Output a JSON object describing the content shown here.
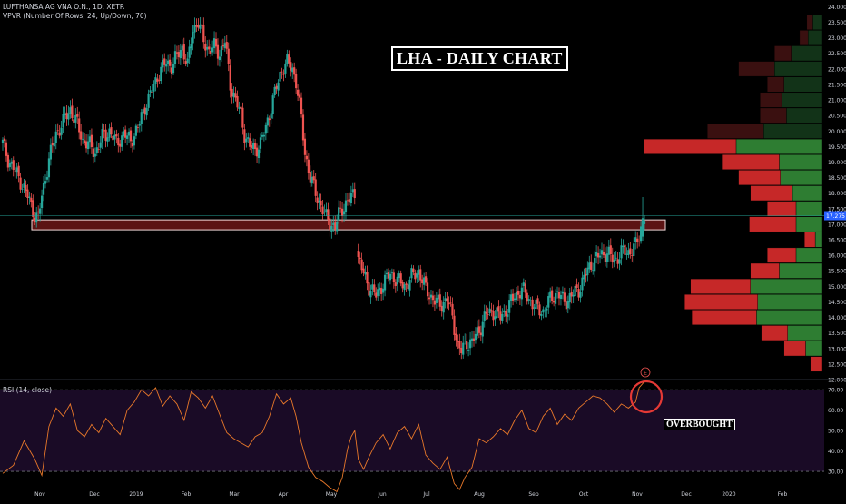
{
  "header": {
    "symbol_line": "LUFTHANSA AG VNA O.N., 1D, XETR",
    "vpvr_line": "VPVR (Number Of Rows, 24, Up/Down, 70)"
  },
  "annotations": {
    "title": "LHA - DAILY CHART",
    "overbought": "OVERBOUGHT",
    "earnings_marker": "E"
  },
  "price_label": "17.275",
  "rsi_label": "RSI (14, close)",
  "colors": {
    "up": "#26a69a",
    "down": "#ef5350",
    "zone_fill": "#5c1414",
    "rsi_line": "#e8782a",
    "rsi_band": "#1a0b26",
    "vp_up": "#2e7d32",
    "vp_down": "#c62828",
    "marker": "#ef5350"
  },
  "chart_data": [
    {
      "type": "candlestick",
      "title": "",
      "xlabel": "",
      "ylabel": "",
      "x_ticks": [
        "Nov",
        "Dec",
        "2019",
        "Feb",
        "Mar",
        "Apr",
        "May",
        "Jun",
        "Jul",
        "Aug",
        "Sep",
        "Oct",
        "Nov",
        "Dec",
        "2020",
        "Feb"
      ],
      "y_ticks": [
        "12.000",
        "12.500",
        "13.000",
        "13.500",
        "14.000",
        "14.500",
        "15.000",
        "15.500",
        "16.000",
        "16.500",
        "17.000",
        "17.500",
        "18.000",
        "18.500",
        "19.000",
        "19.500",
        "20.000",
        "20.500",
        "21.000",
        "21.500",
        "22.000",
        "22.500",
        "23.000",
        "23.500",
        "24.000"
      ],
      "ylim": [
        12.0,
        24.1
      ],
      "last_price": 17.275,
      "support_zone": [
        16.82,
        17.14
      ],
      "close_path": [
        [
          0,
          19.6
        ],
        [
          3,
          19.1
        ],
        [
          7,
          18.7
        ],
        [
          10,
          18.4
        ],
        [
          14,
          17.9
        ],
        [
          18,
          17.3
        ],
        [
          20,
          17.2
        ],
        [
          22,
          17.9
        ],
        [
          26,
          19.1
        ],
        [
          30,
          19.9
        ],
        [
          34,
          20.3
        ],
        [
          38,
          20.7
        ],
        [
          42,
          20.2
        ],
        [
          45,
          19.7
        ],
        [
          48,
          19.6
        ],
        [
          52,
          19.3
        ],
        [
          56,
          19.8
        ],
        [
          60,
          20.0
        ],
        [
          64,
          19.6
        ],
        [
          68,
          19.9
        ],
        [
          72,
          19.7
        ],
        [
          76,
          20.1
        ],
        [
          80,
          20.8
        ],
        [
          84,
          21.3
        ],
        [
          88,
          21.9
        ],
        [
          92,
          22.2
        ],
        [
          95,
          22.1
        ],
        [
          98,
          22.4
        ],
        [
          101,
          22.7
        ],
        [
          104,
          22.1
        ],
        [
          107,
          23.3
        ],
        [
          110,
          23.5
        ],
        [
          113,
          22.9
        ],
        [
          116,
          22.6
        ],
        [
          119,
          22.7
        ],
        [
          122,
          22.5
        ],
        [
          125,
          22.9
        ],
        [
          128,
          21.5
        ],
        [
          131,
          21.0
        ],
        [
          134,
          20.5
        ],
        [
          136,
          19.9
        ],
        [
          139,
          19.5
        ],
        [
          142,
          19.4
        ],
        [
          145,
          19.6
        ],
        [
          148,
          20.1
        ],
        [
          151,
          20.8
        ],
        [
          154,
          21.4
        ],
        [
          157,
          22.0
        ],
        [
          160,
          22.2
        ],
        [
          163,
          22.0
        ],
        [
          165,
          21.6
        ],
        [
          168,
          20.4
        ],
        [
          170,
          19.3
        ],
        [
          173,
          18.5
        ],
        [
          176,
          18.0
        ],
        [
          179,
          17.6
        ],
        [
          182,
          17.2
        ],
        [
          185,
          17.0
        ],
        [
          187,
          16.9
        ],
        [
          189,
          17.3
        ],
        [
          192,
          17.6
        ],
        [
          195,
          17.8
        ],
        [
          198,
          18.0
        ],
        [
          200,
          15.9
        ],
        [
          203,
          15.4
        ],
        [
          206,
          15.0
        ],
        [
          210,
          14.7
        ],
        [
          214,
          15.1
        ],
        [
          218,
          15.4
        ],
        [
          222,
          15.2
        ],
        [
          226,
          15.0
        ],
        [
          230,
          15.3
        ],
        [
          234,
          15.5
        ],
        [
          238,
          14.9
        ],
        [
          242,
          14.6
        ],
        [
          246,
          14.4
        ],
        [
          250,
          14.6
        ],
        [
          253,
          14.0
        ],
        [
          256,
          13.1
        ],
        [
          258,
          12.9
        ],
        [
          261,
          13.2
        ],
        [
          264,
          13.2
        ],
        [
          268,
          13.6
        ],
        [
          272,
          14.1
        ],
        [
          276,
          14.2
        ],
        [
          280,
          14.0
        ],
        [
          284,
          14.3
        ],
        [
          288,
          14.7
        ],
        [
          292,
          14.9
        ],
        [
          296,
          14.6
        ],
        [
          300,
          14.3
        ],
        [
          304,
          14.2
        ],
        [
          308,
          14.6
        ],
        [
          312,
          14.8
        ],
        [
          316,
          14.5
        ],
        [
          320,
          14.7
        ],
        [
          324,
          14.9
        ],
        [
          328,
          15.4
        ],
        [
          332,
          15.8
        ],
        [
          336,
          16.0
        ],
        [
          340,
          16.1
        ],
        [
          344,
          15.8
        ],
        [
          348,
          16.1
        ],
        [
          352,
          16.1
        ],
        [
          356,
          16.3
        ],
        [
          358,
          16.6
        ],
        [
          360,
          17.2
        ],
        [
          361,
          17.3
        ]
      ],
      "volume_profile": [
        {
          "price": 23.5,
          "up": 0.08,
          "down": 0.05
        },
        {
          "price": 23.0,
          "up": 0.12,
          "down": 0.07
        },
        {
          "price": 22.5,
          "up": 0.26,
          "down": 0.14
        },
        {
          "price": 22.0,
          "up": 0.4,
          "down": 0.3
        },
        {
          "price": 21.5,
          "up": 0.32,
          "down": 0.14
        },
        {
          "price": 21.0,
          "up": 0.34,
          "down": 0.18
        },
        {
          "price": 20.5,
          "up": 0.3,
          "down": 0.22
        },
        {
          "price": 20.0,
          "up": 0.49,
          "down": 0.47
        },
        {
          "price": 19.5,
          "up": 0.72,
          "down": 0.77
        },
        {
          "price": 19.0,
          "up": 0.36,
          "down": 0.48
        },
        {
          "price": 18.5,
          "up": 0.35,
          "down": 0.35
        },
        {
          "price": 18.0,
          "up": 0.25,
          "down": 0.35
        },
        {
          "price": 17.5,
          "up": 0.22,
          "down": 0.24
        },
        {
          "price": 17.0,
          "up": 0.22,
          "down": 0.39
        },
        {
          "price": 16.5,
          "up": 0.06,
          "down": 0.09
        },
        {
          "price": 16.0,
          "up": 0.22,
          "down": 0.24
        },
        {
          "price": 15.5,
          "up": 0.36,
          "down": 0.24
        },
        {
          "price": 15.0,
          "up": 0.6,
          "down": 0.5
        },
        {
          "price": 14.5,
          "up": 0.54,
          "down": 0.61
        },
        {
          "price": 14.0,
          "up": 0.55,
          "down": 0.54
        },
        {
          "price": 13.5,
          "up": 0.29,
          "down": 0.22
        },
        {
          "price": 13.0,
          "up": 0.14,
          "down": 0.18
        },
        {
          "price": 12.5,
          "up": 0.0,
          "down": 0.1
        }
      ]
    },
    {
      "type": "line",
      "title": "RSI (14, close)",
      "y_ticks": [
        "30.00",
        "40.00",
        "50.00",
        "60.00",
        "70.00"
      ],
      "ylim": [
        22,
        75
      ],
      "overbought_level": 70,
      "oversold_level": 30,
      "points": [
        [
          0,
          29
        ],
        [
          6,
          33
        ],
        [
          12,
          45
        ],
        [
          18,
          36
        ],
        [
          22,
          28
        ],
        [
          26,
          52
        ],
        [
          30,
          61
        ],
        [
          34,
          57
        ],
        [
          38,
          63
        ],
        [
          42,
          50
        ],
        [
          46,
          47
        ],
        [
          50,
          53
        ],
        [
          54,
          49
        ],
        [
          58,
          56
        ],
        [
          62,
          52
        ],
        [
          66,
          48
        ],
        [
          70,
          60
        ],
        [
          74,
          64
        ],
        [
          78,
          70
        ],
        [
          82,
          67
        ],
        [
          86,
          71
        ],
        [
          90,
          62
        ],
        [
          94,
          67
        ],
        [
          98,
          63
        ],
        [
          102,
          55
        ],
        [
          106,
          69
        ],
        [
          110,
          66
        ],
        [
          114,
          61
        ],
        [
          118,
          67
        ],
        [
          122,
          58
        ],
        [
          126,
          49
        ],
        [
          130,
          46
        ],
        [
          134,
          44
        ],
        [
          138,
          42
        ],
        [
          142,
          47
        ],
        [
          146,
          49
        ],
        [
          150,
          57
        ],
        [
          154,
          68
        ],
        [
          158,
          63
        ],
        [
          162,
          66
        ],
        [
          165,
          57
        ],
        [
          168,
          44
        ],
        [
          172,
          32
        ],
        [
          176,
          27
        ],
        [
          180,
          25
        ],
        [
          184,
          22
        ],
        [
          186,
          21
        ],
        [
          188,
          20
        ],
        [
          191,
          27
        ],
        [
          194,
          41
        ],
        [
          196,
          47
        ],
        [
          198,
          50
        ],
        [
          200,
          36
        ],
        [
          203,
          31
        ],
        [
          206,
          37
        ],
        [
          210,
          44
        ],
        [
          214,
          48
        ],
        [
          218,
          41
        ],
        [
          222,
          49
        ],
        [
          226,
          52
        ],
        [
          230,
          46
        ],
        [
          234,
          53
        ],
        [
          238,
          38
        ],
        [
          242,
          34
        ],
        [
          246,
          31
        ],
        [
          250,
          37
        ],
        [
          254,
          24
        ],
        [
          257,
          21
        ],
        [
          260,
          27
        ],
        [
          264,
          32
        ],
        [
          268,
          46
        ],
        [
          272,
          44
        ],
        [
          276,
          47
        ],
        [
          280,
          51
        ],
        [
          284,
          48
        ],
        [
          288,
          55
        ],
        [
          292,
          60
        ],
        [
          296,
          51
        ],
        [
          300,
          49
        ],
        [
          304,
          57
        ],
        [
          308,
          61
        ],
        [
          312,
          53
        ],
        [
          316,
          58
        ],
        [
          320,
          55
        ],
        [
          324,
          61
        ],
        [
          328,
          64
        ],
        [
          332,
          67
        ],
        [
          336,
          66
        ],
        [
          340,
          63
        ],
        [
          344,
          59
        ],
        [
          348,
          63
        ],
        [
          352,
          61
        ],
        [
          356,
          64
        ],
        [
          358,
          71
        ],
        [
          361,
          74
        ]
      ]
    }
  ]
}
